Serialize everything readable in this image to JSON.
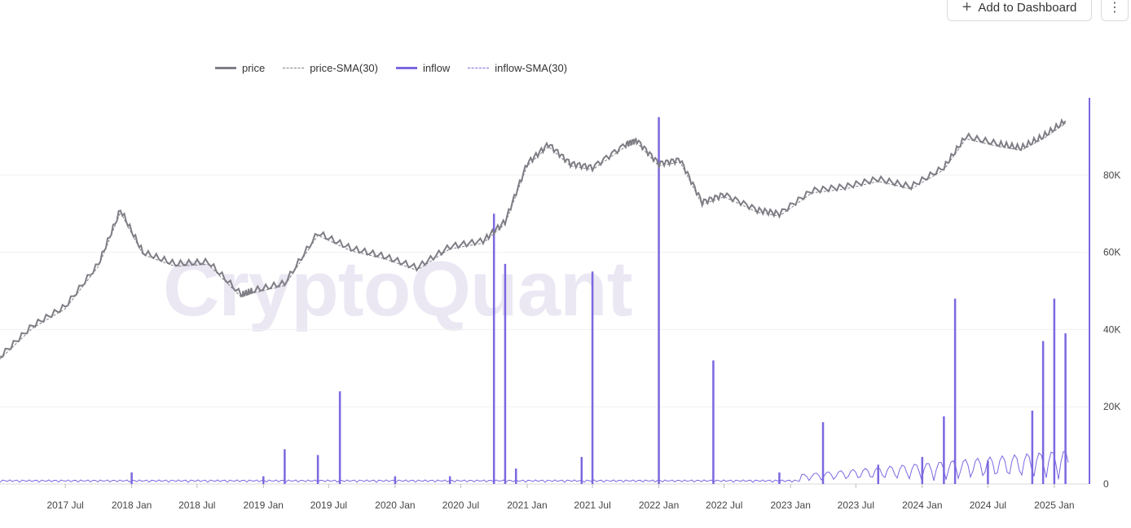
{
  "toolbar": {
    "add_label": "Add to Dashboard",
    "more_glyph": "⋮"
  },
  "watermark": "CryptoQuant",
  "legend": [
    {
      "label": "price"
    },
    {
      "label": "price-SMA(30)"
    },
    {
      "label": "inflow"
    },
    {
      "label": "inflow-SMA(30)"
    }
  ],
  "colors": {
    "price": "#7f7d85",
    "inflow": "#7b68e0",
    "grid": "#f0f0f0"
  },
  "icons": {
    "add": "plus-icon",
    "more": "more-vertical-icon"
  },
  "chart_data": {
    "type": "line",
    "x_ticks": [
      "2017 Jul",
      "2018 Jan",
      "2018 Jul",
      "2019 Jan",
      "2019 Jul",
      "2020 Jan",
      "2020 Jul",
      "2021 Jan",
      "2021 Jul",
      "2022 Jan",
      "2022 Jul",
      "2023 Jan",
      "2023 Jul",
      "2024 Jan",
      "2024 Jul",
      "2025 Jan"
    ],
    "y_ticks": [
      "0",
      "20K",
      "40K",
      "60K",
      "80K"
    ],
    "ylim": [
      0,
      100000
    ],
    "xlim": [
      "2017-01-01",
      "2025-03-01"
    ],
    "price_series": {
      "name": "price",
      "x": [
        "2017-01",
        "2017-04",
        "2017-07",
        "2017-10",
        "2017-12",
        "2018-02",
        "2018-05",
        "2018-08",
        "2018-11",
        "2018-12",
        "2019-03",
        "2019-06",
        "2019-09",
        "2019-12",
        "2020-03",
        "2020-06",
        "2020-09",
        "2020-11",
        "2021-01",
        "2021-03",
        "2021-05",
        "2021-07",
        "2021-10",
        "2021-11",
        "2022-01",
        "2022-03",
        "2022-05",
        "2022-07",
        "2022-10",
        "2022-12",
        "2023-03",
        "2023-06",
        "2023-09",
        "2023-12",
        "2024-03",
        "2024-05",
        "2024-08",
        "2024-10",
        "2024-12",
        "2025-02"
      ],
      "values": [
        33000,
        41000,
        46000,
        57000,
        71000,
        60000,
        57000,
        57500,
        49000,
        50000,
        52000,
        65000,
        61000,
        59000,
        56000,
        61500,
        63000,
        68000,
        83000,
        88000,
        83000,
        82000,
        88000,
        89000,
        83000,
        84000,
        73000,
        75000,
        71000,
        70000,
        76000,
        77000,
        79000,
        77000,
        82000,
        90000,
        88000,
        87000,
        90000,
        94000
      ]
    },
    "inflow_series": {
      "name": "inflow",
      "x": [
        "2017-01",
        "2018-01",
        "2019-01",
        "2019-03",
        "2019-06",
        "2019-08",
        "2020-01",
        "2020-06",
        "2020-10",
        "2020-11",
        "2020-12",
        "2021-06",
        "2021-07",
        "2022-01",
        "2022-06",
        "2022-12",
        "2023-04",
        "2023-09",
        "2024-01",
        "2024-03",
        "2024-04",
        "2024-07",
        "2024-11",
        "2024-12",
        "2025-01",
        "2025-02"
      ],
      "values": [
        0,
        3000,
        2000,
        9000,
        7500,
        24000,
        2000,
        2000,
        70000,
        57000,
        4000,
        7000,
        55000,
        95000,
        32000,
        3000,
        16000,
        5000,
        7000,
        17500,
        48000,
        6000,
        19000,
        37000,
        48000,
        39000
      ]
    },
    "right_axis_marker": "inflow-axis"
  }
}
